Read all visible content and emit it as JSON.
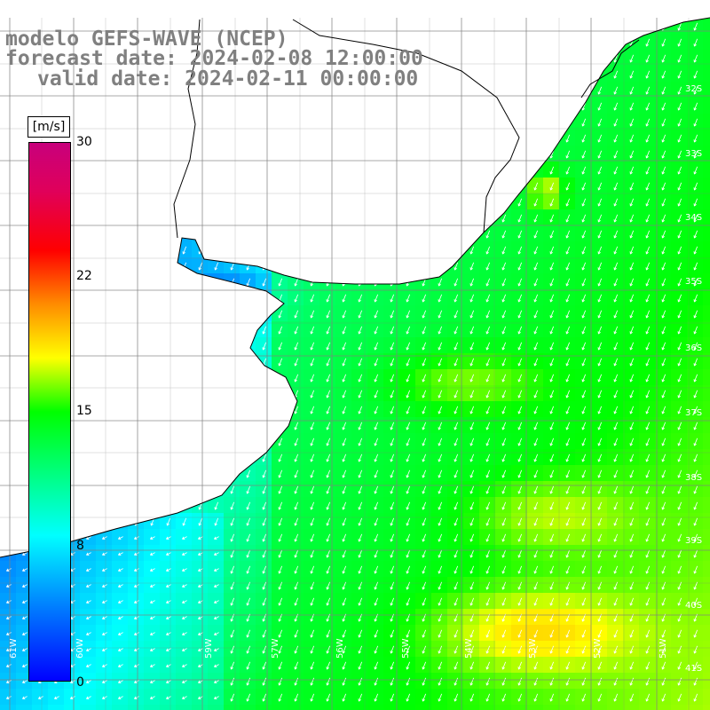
{
  "title": {
    "line1": "modelo GEFS-WAVE (NCEP)",
    "line2": "forecast date: 2024-02-08 12:00:00",
    "line3": "valid date: 2024-02-11 00:00:00"
  },
  "colorbar": {
    "unit": "[m/s]",
    "ticks": [
      "30",
      "22",
      "15",
      "8",
      "0"
    ],
    "tick_values": [
      30,
      22,
      15,
      8,
      0
    ],
    "range": [
      0,
      30
    ],
    "colors": [
      "#0000ff",
      "#0077ff",
      "#00ffff",
      "#00ff00",
      "#ffff00",
      "#ff8c00",
      "#ff0000",
      "#c8007c"
    ]
  },
  "grid": {
    "lon_labels": [
      "61W",
      "60W",
      "59W",
      "57W",
      "56W",
      "55W",
      "54W",
      "53W",
      "52W",
      "51W"
    ],
    "lat_labels": [
      "32S",
      "33S",
      "34S",
      "35S",
      "36S",
      "37S",
      "38S",
      "39S",
      "40S",
      "41S"
    ]
  },
  "colors": {
    "land": "#ffffff",
    "coast": "#000000",
    "grid": "#7f7f7f",
    "arrows": "#ffffff",
    "title": "#808080"
  },
  "wind_direction": "from the north-east (arrows pointing south-west)"
}
